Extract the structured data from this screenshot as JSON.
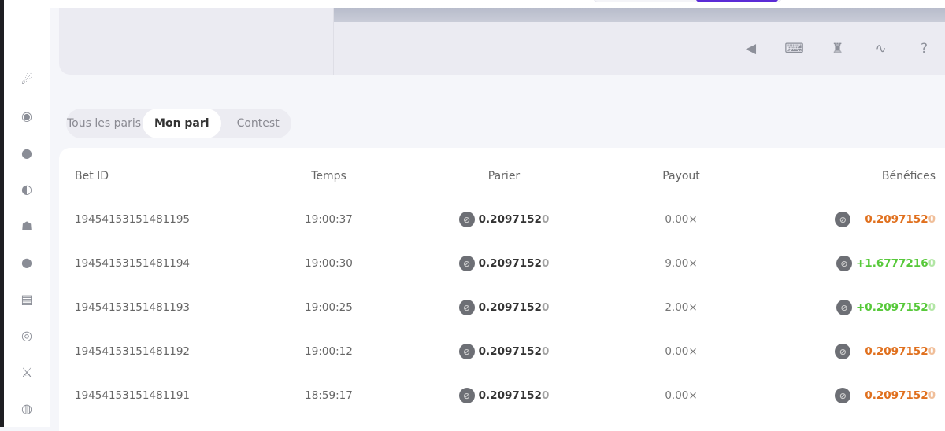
{
  "sidebar": {
    "icons": [
      "rocket-icon",
      "roulette-icon",
      "bomb-icon",
      "wheel-icon",
      "mines-icon",
      "plinko-icon",
      "slot-icon",
      "stopwatch-icon",
      "sword-icon",
      "disc-icon"
    ]
  },
  "toolbar": {
    "icons": [
      "sound-icon",
      "keyboard-icon",
      "acorn-icon",
      "chart-line-icon",
      "help-icon"
    ]
  },
  "tabs": [
    {
      "label": "Tous les paris"
    },
    {
      "label": "Mon pari",
      "active": true
    },
    {
      "label": "Contest"
    }
  ],
  "table": {
    "headers": {
      "bet_id": "Bet ID",
      "time": "Temps",
      "bet": "Parier",
      "payout": "Payout",
      "profit": "Bénéfices"
    },
    "rows": [
      {
        "id": "19454153151481195",
        "time": "19:00:37",
        "bet": "0.2097152",
        "bet_tail": "0",
        "payout": "0.00×",
        "profit": "0.2097152",
        "profit_tail": "0",
        "result": "loss"
      },
      {
        "id": "19454153151481194",
        "time": "19:00:30",
        "bet": "0.2097152",
        "bet_tail": "0",
        "payout": "9.00×",
        "profit": "+1.6777216",
        "profit_tail": "0",
        "result": "win"
      },
      {
        "id": "19454153151481193",
        "time": "19:00:25",
        "bet": "0.2097152",
        "bet_tail": "0",
        "payout": "2.00×",
        "profit": "+0.2097152",
        "profit_tail": "0",
        "result": "win"
      },
      {
        "id": "19454153151481192",
        "time": "19:00:12",
        "bet": "0.2097152",
        "bet_tail": "0",
        "payout": "0.00×",
        "profit": "0.2097152",
        "profit_tail": "0",
        "result": "loss"
      },
      {
        "id": "19454153151481191",
        "time": "18:59:17",
        "bet": "0.2097152",
        "bet_tail": "0",
        "payout": "0.00×",
        "profit": "0.2097152",
        "profit_tail": "0",
        "result": "loss"
      }
    ]
  },
  "colors": {
    "loss": "#e0701e",
    "win": "#57c93a",
    "accent": "#5b2bd6"
  }
}
